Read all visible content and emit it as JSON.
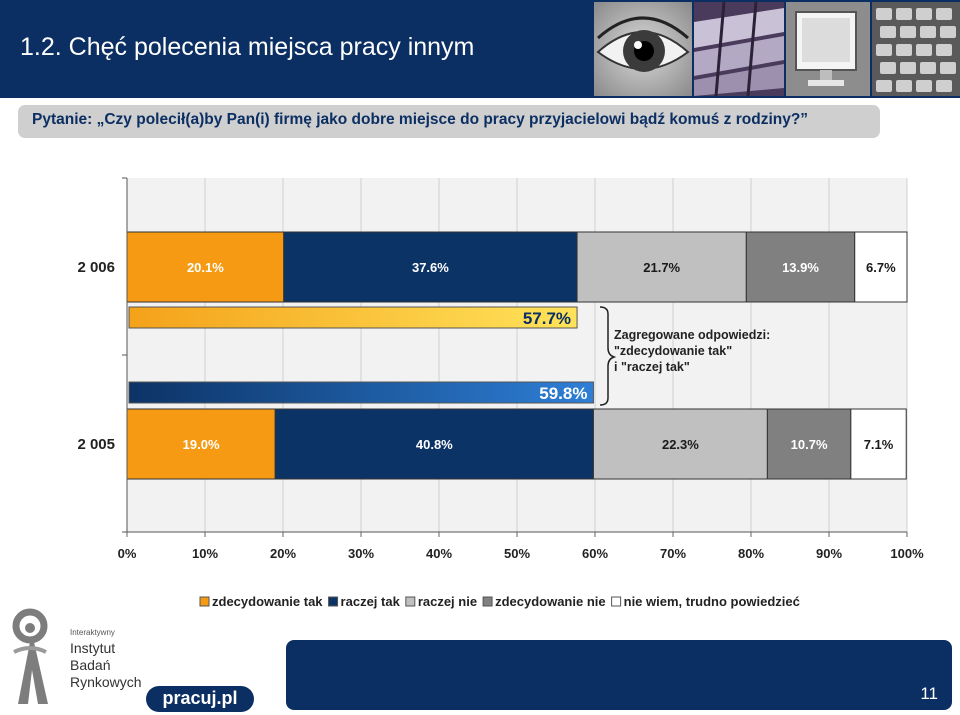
{
  "header": {
    "title": "1.2. Chęć polecenia miejsca pracy innym",
    "question": "Pytanie: „Czy polecił(a)by Pan(i) firmę jako dobre miejsce do pracy przyjacielowi bądź komuś z rodziny?”"
  },
  "colors": {
    "header_bg": "#0c2f63",
    "orange": "#f59a12",
    "navy": "#0c3366",
    "lightgray": "#c0c0c0",
    "darkgray": "#808080",
    "white": "#ffffff"
  },
  "chart_data": {
    "type": "bar",
    "orientation": "horizontal",
    "stacked": true,
    "categories": [
      "2 006",
      "2 005"
    ],
    "series": [
      {
        "name": "zdecydowanie tak",
        "values": [
          20.1,
          19.0
        ],
        "labels": [
          "20.1%",
          "19.0%"
        ]
      },
      {
        "name": "raczej tak",
        "values": [
          37.6,
          40.8
        ],
        "labels": [
          "37.6%",
          "40.8%"
        ]
      },
      {
        "name": "raczej nie",
        "values": [
          21.7,
          22.3
        ],
        "labels": [
          "21.7%",
          "22.3%"
        ]
      },
      {
        "name": "zdecydowanie nie",
        "values": [
          13.9,
          10.7
        ],
        "labels": [
          "13.9%",
          "10.7%"
        ]
      },
      {
        "name": "nie wiem, trudno powiedzieć",
        "values": [
          6.7,
          7.1
        ],
        "labels": [
          "6.7%",
          "7.1%"
        ]
      }
    ],
    "aggregate_bars": [
      {
        "value": 57.7,
        "label": "57.7%"
      },
      {
        "value": 59.8,
        "label": "59.8%"
      }
    ],
    "annotation": [
      "Zagregowane odpowiedzi:",
      "\"zdecydowanie tak\"",
      "i \"raczej tak\""
    ],
    "xlim": [
      0,
      100
    ],
    "xticks": [
      "0%",
      "10%",
      "20%",
      "30%",
      "40%",
      "50%",
      "60%",
      "70%",
      "80%",
      "90%",
      "100%"
    ],
    "grid": true,
    "legend_position": "bottom"
  },
  "footer": {
    "page_number": "11",
    "ibr_small": "Interaktywny",
    "ibr_lines": [
      "Instytut",
      "Badań",
      "Rynkowych"
    ],
    "pracuj": "pracuj.pl"
  },
  "icons": [
    "eye-icon",
    "keyboard-icon",
    "monitor-icon",
    "ibr-logo-icon"
  ]
}
